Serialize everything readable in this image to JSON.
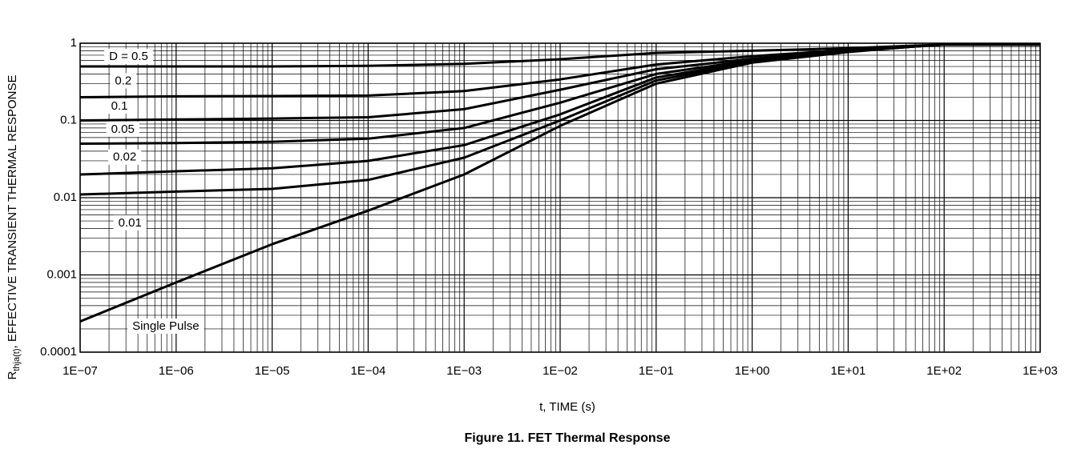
{
  "caption": "Figure 11. FET Thermal Response",
  "chart_data": {
    "type": "line",
    "title": "",
    "xlabel": "t, TIME (s)",
    "ylabel": {
      "prefix": "R",
      "subscript": "thja(t)",
      "suffix": ", EFFECTIVE TRANSIENT THERMAL RESPONSE"
    },
    "xscale": "log",
    "yscale": "log",
    "xlim": [
      1e-07,
      1000
    ],
    "ylim": [
      0.0001,
      1
    ],
    "grid": true,
    "legend": "none",
    "x_ticks": [
      {
        "value": 1e-07,
        "label": "1E−07"
      },
      {
        "value": 1e-06,
        "label": "1E−06"
      },
      {
        "value": 1e-05,
        "label": "1E−05"
      },
      {
        "value": 0.0001,
        "label": "1E−04"
      },
      {
        "value": 0.001,
        "label": "1E−03"
      },
      {
        "value": 0.01,
        "label": "1E−02"
      },
      {
        "value": 0.1,
        "label": "1E−01"
      },
      {
        "value": 1,
        "label": "1E+00"
      },
      {
        "value": 10,
        "label": "1E+01"
      },
      {
        "value": 100,
        "label": "1E+02"
      },
      {
        "value": 1000,
        "label": "1E+03"
      }
    ],
    "y_ticks": [
      {
        "value": 1,
        "label": "1"
      },
      {
        "value": 0.1,
        "label": "0.1"
      },
      {
        "value": 0.01,
        "label": "0.01"
      },
      {
        "value": 0.001,
        "label": "0.001"
      },
      {
        "value": 0.0001,
        "label": "0.0001"
      }
    ],
    "series": [
      {
        "name": "D = 0.5",
        "label_pos": {
          "x": 2e-07,
          "y": 0.68
        },
        "x": [
          1e-07,
          1e-06,
          1e-05,
          0.0001,
          0.001,
          0.01,
          0.1,
          1,
          10,
          50,
          100,
          1000
        ],
        "y": [
          0.5,
          0.5,
          0.5,
          0.51,
          0.54,
          0.62,
          0.75,
          0.8,
          0.86,
          0.93,
          0.96,
          0.96
        ]
      },
      {
        "name": "0.2",
        "label_pos": {
          "x": 2.3e-07,
          "y": 0.33
        },
        "x": [
          1e-07,
          1e-06,
          1e-05,
          0.0001,
          0.001,
          0.01,
          0.1,
          1,
          10,
          50,
          100,
          1000
        ],
        "y": [
          0.2,
          0.205,
          0.207,
          0.21,
          0.24,
          0.34,
          0.53,
          0.68,
          0.82,
          0.92,
          0.96,
          0.96
        ]
      },
      {
        "name": "0.1",
        "label_pos": {
          "x": 2.1e-07,
          "y": 0.155
        },
        "x": [
          1e-07,
          1e-06,
          1e-05,
          0.0001,
          0.001,
          0.01,
          0.1,
          1,
          10,
          50,
          100,
          1000
        ],
        "y": [
          0.1,
          0.103,
          0.106,
          0.11,
          0.14,
          0.25,
          0.46,
          0.63,
          0.8,
          0.92,
          0.96,
          0.96
        ]
      },
      {
        "name": "0.05",
        "label_pos": {
          "x": 2.1e-07,
          "y": 0.078
        },
        "x": [
          1e-07,
          1e-06,
          1e-05,
          0.0001,
          0.001,
          0.01,
          0.1,
          1,
          10,
          50,
          100,
          1000
        ],
        "y": [
          0.05,
          0.051,
          0.053,
          0.058,
          0.08,
          0.17,
          0.4,
          0.6,
          0.79,
          0.91,
          0.96,
          0.96
        ]
      },
      {
        "name": "0.02",
        "label_pos": {
          "x": 2.2e-07,
          "y": 0.034
        },
        "x": [
          1e-07,
          1e-06,
          1e-05,
          0.0001,
          0.001,
          0.01,
          0.1,
          1,
          10,
          50,
          100,
          1000
        ],
        "y": [
          0.02,
          0.022,
          0.024,
          0.03,
          0.048,
          0.12,
          0.36,
          0.58,
          0.78,
          0.91,
          0.96,
          0.96
        ]
      },
      {
        "name": "0.01",
        "label_pos": {
          "x": 2.5e-07,
          "y": 0.0048
        },
        "x": [
          1e-07,
          1e-06,
          1e-05,
          0.0001,
          0.001,
          0.01,
          0.1,
          1,
          10,
          50,
          100,
          1000
        ],
        "y": [
          0.011,
          0.012,
          0.013,
          0.017,
          0.033,
          0.1,
          0.33,
          0.57,
          0.78,
          0.91,
          0.96,
          0.96
        ]
      },
      {
        "name": "Single Pulse",
        "label_pos": {
          "x": 3.5e-07,
          "y": 0.00022
        },
        "x": [
          1e-07,
          1e-06,
          1e-05,
          0.0001,
          0.001,
          0.01,
          0.1,
          1,
          10,
          50,
          100,
          1000
        ],
        "y": [
          0.00025,
          0.0008,
          0.0025,
          0.0068,
          0.02,
          0.085,
          0.3,
          0.56,
          0.77,
          0.91,
          0.96,
          0.96
        ]
      }
    ]
  }
}
